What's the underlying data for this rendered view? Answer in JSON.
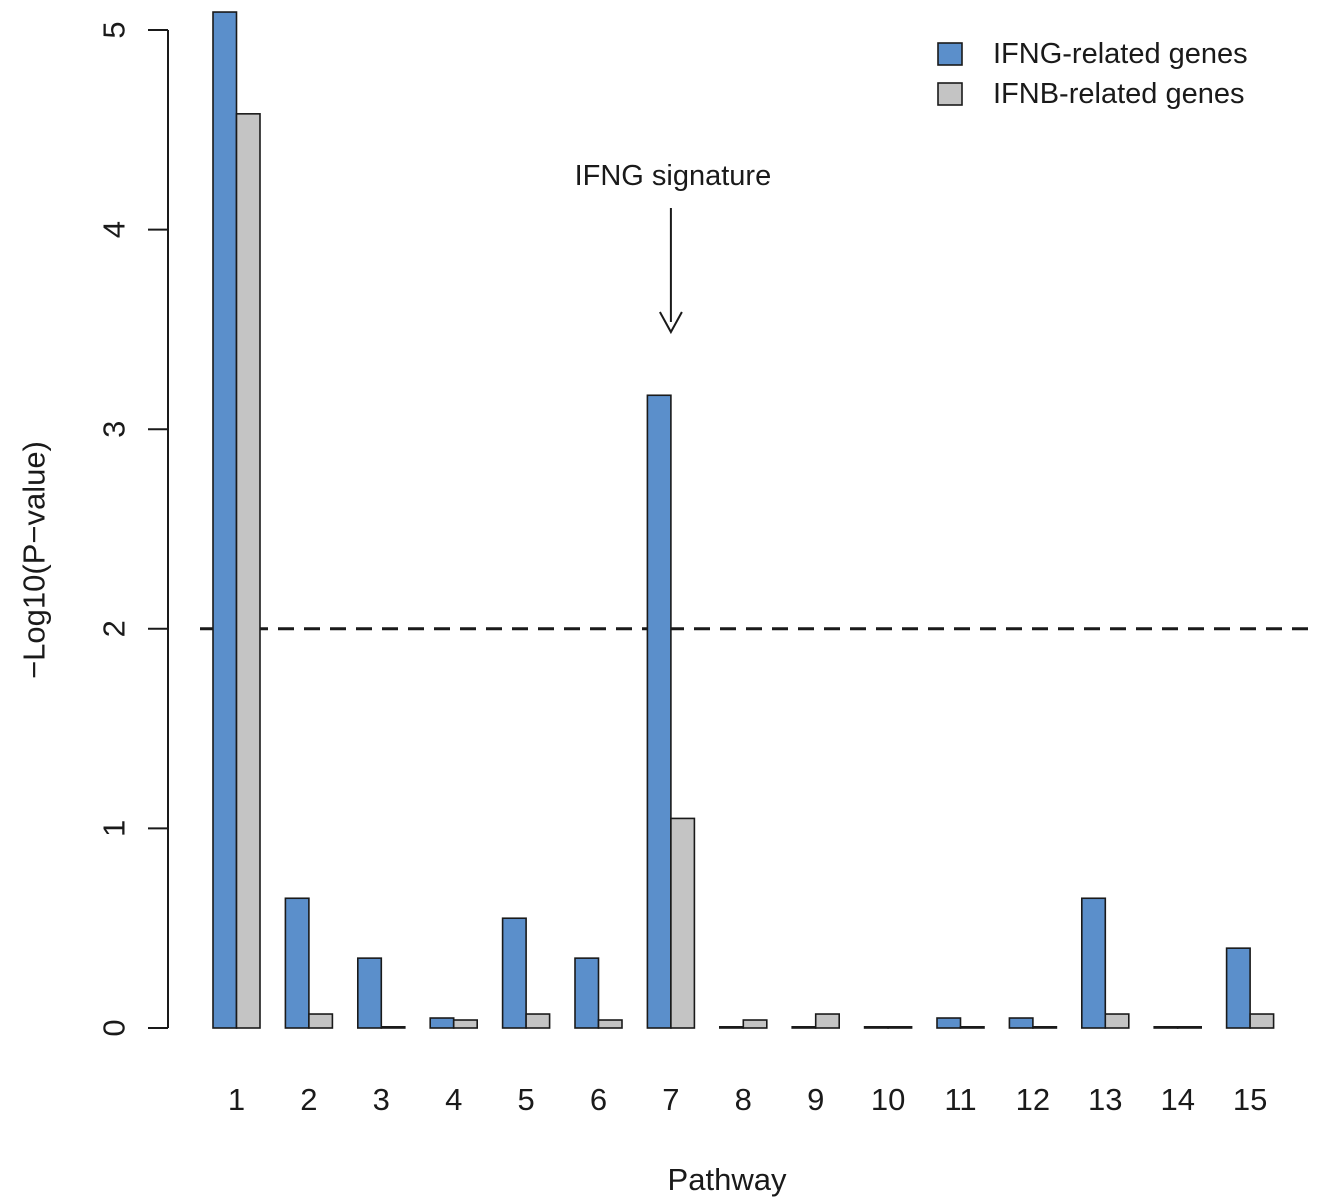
{
  "chart_data": {
    "type": "bar",
    "title": "",
    "xlabel": "Pathway",
    "ylabel": "−Log10(P−value)",
    "categories": [
      "1",
      "2",
      "3",
      "4",
      "5",
      "6",
      "7",
      "8",
      "9",
      "10",
      "11",
      "12",
      "13",
      "14",
      "15"
    ],
    "series": [
      {
        "name": "IFNG-related genes",
        "color": "#5b8fcb",
        "values": [
          5.09,
          0.65,
          0.35,
          0.05,
          0.55,
          0.35,
          3.17,
          0.0,
          0.0,
          0.0,
          0.05,
          0.05,
          0.65,
          0.0,
          0.4
        ]
      },
      {
        "name": "IFNB-related genes",
        "color": "#c4c4c4",
        "values": [
          4.58,
          0.07,
          0.0,
          0.04,
          0.07,
          0.04,
          1.05,
          0.04,
          0.07,
          0.0,
          0.0,
          0.0,
          0.07,
          0.0,
          0.07
        ]
      }
    ],
    "yticks": [
      "0",
      "1",
      "2",
      "3",
      "4",
      "5"
    ],
    "ylim": [
      0,
      5.1
    ],
    "threshold": 2,
    "legend_position": "top-right",
    "annotation": {
      "text": "IFNG signature",
      "category": "7"
    }
  }
}
